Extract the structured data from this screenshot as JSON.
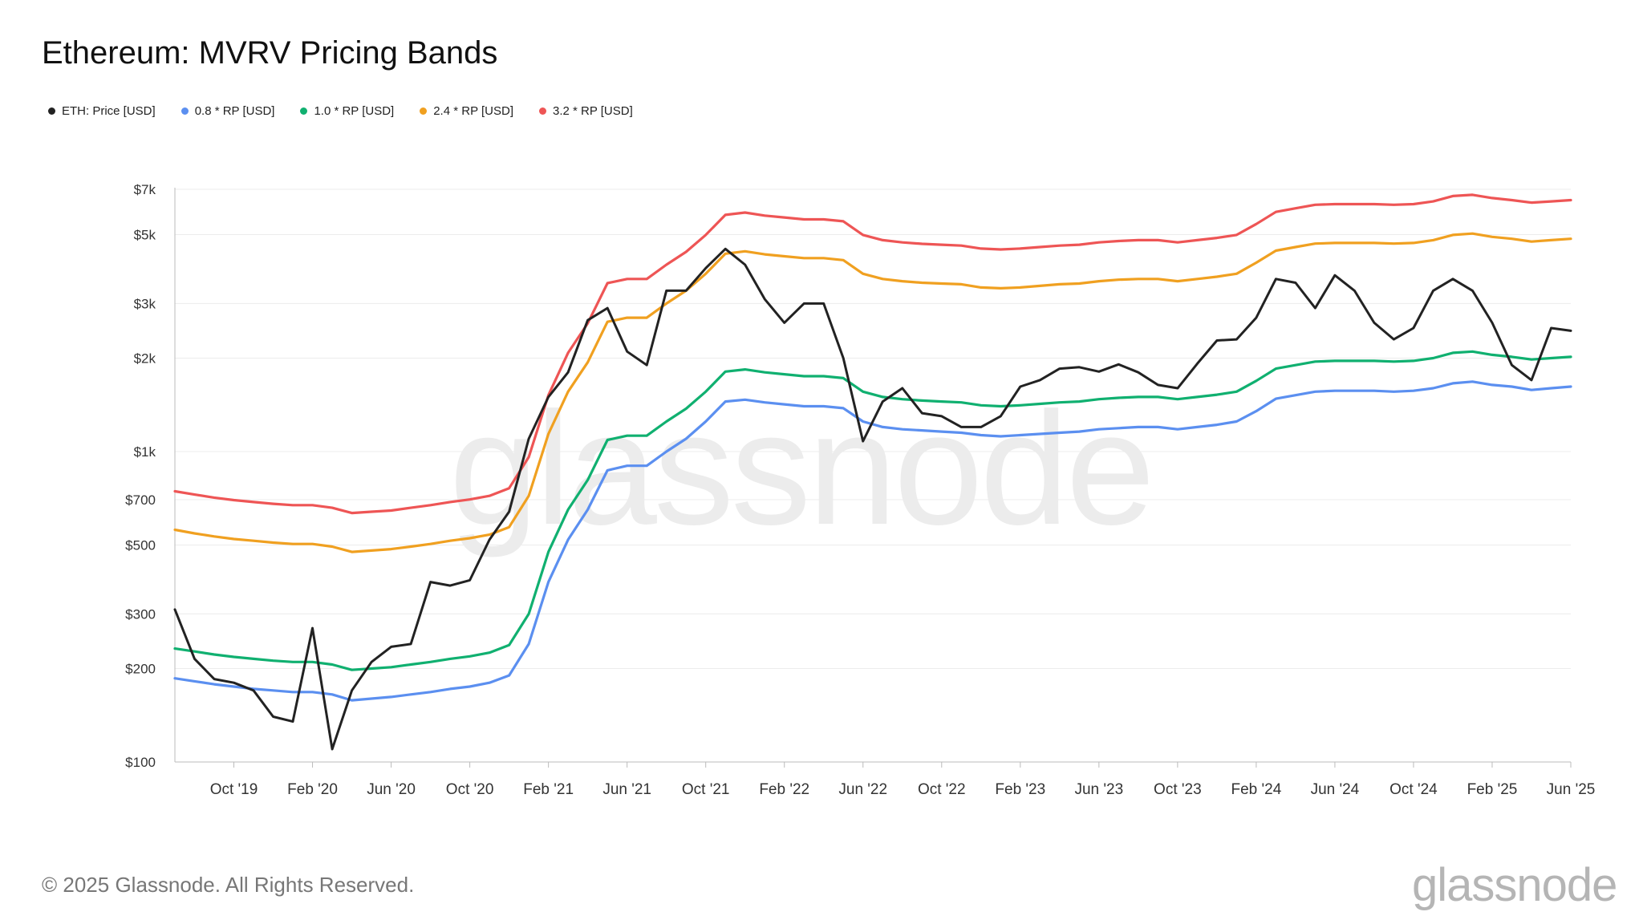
{
  "title": "Ethereum: MVRV Pricing Bands",
  "legend": [
    {
      "label": "ETH: Price [USD]",
      "color": "#222222"
    },
    {
      "label": "0.8 * RP [USD]",
      "color": "#5b8ff0"
    },
    {
      "label": "1.0 * RP [USD]",
      "color": "#10b070"
    },
    {
      "label": "2.4 * RP [USD]",
      "color": "#f0a020"
    },
    {
      "label": "3.2 * RP [USD]",
      "color": "#ee5555"
    }
  ],
  "watermark": "glassnode",
  "footer": "© 2025 Glassnode. All Rights Reserved.",
  "brand": "glassnode",
  "chart_data": {
    "type": "line",
    "title": "Ethereum: MVRV Pricing Bands",
    "y_scale": "log",
    "ylim": [
      100,
      7000
    ],
    "y_ticks": [
      {
        "value": 100,
        "label": "$100"
      },
      {
        "value": 200,
        "label": "$200"
      },
      {
        "value": 300,
        "label": "$300"
      },
      {
        "value": 500,
        "label": "$500"
      },
      {
        "value": 700,
        "label": "$700"
      },
      {
        "value": 1000,
        "label": "$1k"
      },
      {
        "value": 2000,
        "label": "$2k"
      },
      {
        "value": 3000,
        "label": "$3k"
      },
      {
        "value": 5000,
        "label": "$5k"
      },
      {
        "value": 7000,
        "label": "$7k"
      }
    ],
    "x_ticks": [
      "Oct '19",
      "Feb '20",
      "Jun '20",
      "Oct '20",
      "Feb '21",
      "Jun '21",
      "Oct '21",
      "Feb '22",
      "Jun '22",
      "Oct '22",
      "Feb '23",
      "Jun '23",
      "Oct '23",
      "Feb '24",
      "Jun '24",
      "Oct '24",
      "Feb '25",
      "Jun '25"
    ],
    "x_range_months": [
      "2019-07",
      "2025-06"
    ],
    "grid": true,
    "legend_position": "top-left",
    "x": [
      "2019-07",
      "2019-08",
      "2019-09",
      "2019-10",
      "2019-11",
      "2019-12",
      "2020-01",
      "2020-02",
      "2020-03",
      "2020-04",
      "2020-05",
      "2020-06",
      "2020-07",
      "2020-08",
      "2020-09",
      "2020-10",
      "2020-11",
      "2020-12",
      "2021-01",
      "2021-02",
      "2021-03",
      "2021-04",
      "2021-05",
      "2021-06",
      "2021-07",
      "2021-08",
      "2021-09",
      "2021-10",
      "2021-11",
      "2021-12",
      "2022-01",
      "2022-02",
      "2022-03",
      "2022-04",
      "2022-05",
      "2022-06",
      "2022-07",
      "2022-08",
      "2022-09",
      "2022-10",
      "2022-11",
      "2022-12",
      "2023-01",
      "2023-02",
      "2023-03",
      "2023-04",
      "2023-05",
      "2023-06",
      "2023-07",
      "2023-08",
      "2023-09",
      "2023-10",
      "2023-11",
      "2023-12",
      "2024-01",
      "2024-02",
      "2024-03",
      "2024-04",
      "2024-05",
      "2024-06",
      "2024-07",
      "2024-08",
      "2024-09",
      "2024-10",
      "2024-11",
      "2024-12",
      "2025-01",
      "2025-02",
      "2025-03",
      "2025-04",
      "2025-05",
      "2025-06"
    ],
    "series": [
      {
        "name": "ETH: Price [USD]",
        "color": "#222222",
        "values": [
          310,
          215,
          185,
          180,
          170,
          140,
          135,
          270,
          110,
          170,
          210,
          235,
          240,
          380,
          370,
          385,
          520,
          640,
          1100,
          1500,
          1800,
          2650,
          2900,
          2100,
          1900,
          3300,
          3300,
          3900,
          4500,
          4000,
          3100,
          2600,
          3000,
          3000,
          2000,
          1080,
          1450,
          1600,
          1330,
          1300,
          1200,
          1200,
          1300,
          1620,
          1700,
          1850,
          1870,
          1810,
          1910,
          1800,
          1640,
          1600,
          1920,
          2280,
          2300,
          2700,
          3600,
          3500,
          2900,
          3700,
          3300,
          2600,
          2300,
          2500,
          3300,
          3600,
          3300,
          2600,
          1900,
          1700,
          2500,
          2450
        ]
      },
      {
        "name": "0.8 * RP [USD]",
        "color": "#5b8ff0",
        "values": [
          186,
          182,
          178,
          175,
          172,
          170,
          168,
          168,
          165,
          158,
          160,
          162,
          165,
          168,
          172,
          175,
          180,
          190,
          240,
          380,
          520,
          650,
          870,
          900,
          900,
          1000,
          1100,
          1250,
          1450,
          1470,
          1440,
          1420,
          1400,
          1400,
          1380,
          1250,
          1200,
          1180,
          1170,
          1160,
          1150,
          1130,
          1120,
          1130,
          1140,
          1150,
          1160,
          1180,
          1190,
          1200,
          1200,
          1180,
          1200,
          1220,
          1250,
          1350,
          1480,
          1520,
          1560,
          1570,
          1570,
          1570,
          1560,
          1570,
          1600,
          1660,
          1680,
          1640,
          1620,
          1580,
          1600,
          1620
        ]
      },
      {
        "name": "1.0 * RP [USD]",
        "color": "#10b070",
        "values": [
          232,
          227,
          222,
          218,
          215,
          212,
          210,
          210,
          206,
          198,
          200,
          202,
          206,
          210,
          215,
          219,
          225,
          238,
          300,
          475,
          650,
          810,
          1090,
          1125,
          1125,
          1250,
          1375,
          1560,
          1810,
          1840,
          1800,
          1775,
          1750,
          1750,
          1725,
          1560,
          1500,
          1475,
          1460,
          1450,
          1440,
          1410,
          1400,
          1410,
          1425,
          1440,
          1450,
          1475,
          1490,
          1500,
          1500,
          1475,
          1500,
          1525,
          1560,
          1690,
          1850,
          1900,
          1950,
          1960,
          1960,
          1960,
          1950,
          1960,
          2000,
          2080,
          2100,
          2050,
          2020,
          1980,
          2000,
          2020
        ]
      },
      {
        "name": "2.4 * RP [USD]",
        "color": "#f0a020",
        "values": [
          560,
          545,
          533,
          523,
          516,
          509,
          504,
          504,
          494,
          475,
          480,
          485,
          494,
          504,
          516,
          526,
          540,
          571,
          720,
          1140,
          1560,
          1940,
          2620,
          2700,
          2700,
          3000,
          3300,
          3740,
          4340,
          4420,
          4320,
          4260,
          4200,
          4200,
          4140,
          3740,
          3600,
          3540,
          3500,
          3480,
          3460,
          3380,
          3360,
          3380,
          3420,
          3460,
          3480,
          3540,
          3580,
          3600,
          3600,
          3540,
          3600,
          3660,
          3740,
          4060,
          4440,
          4560,
          4680,
          4700,
          4700,
          4700,
          4680,
          4700,
          4800,
          4990,
          5040,
          4920,
          4850,
          4750,
          4800,
          4850
        ]
      },
      {
        "name": "3.2 * RP [USD]",
        "color": "#ee5555",
        "values": [
          745,
          727,
          711,
          698,
          688,
          679,
          672,
          672,
          659,
          634,
          640,
          646,
          659,
          672,
          688,
          701,
          720,
          762,
          960,
          1520,
          2080,
          2590,
          3490,
          3600,
          3600,
          4000,
          4400,
          4990,
          5790,
          5890,
          5760,
          5680,
          5600,
          5600,
          5520,
          4990,
          4800,
          4720,
          4670,
          4640,
          4610,
          4510,
          4480,
          4510,
          4560,
          4610,
          4640,
          4720,
          4770,
          4800,
          4800,
          4720,
          4800,
          4880,
          4990,
          5410,
          5920,
          6080,
          6240,
          6270,
          6270,
          6270,
          6240,
          6270,
          6400,
          6660,
          6720,
          6560,
          6460,
          6340,
          6400,
          6460
        ]
      }
    ]
  }
}
